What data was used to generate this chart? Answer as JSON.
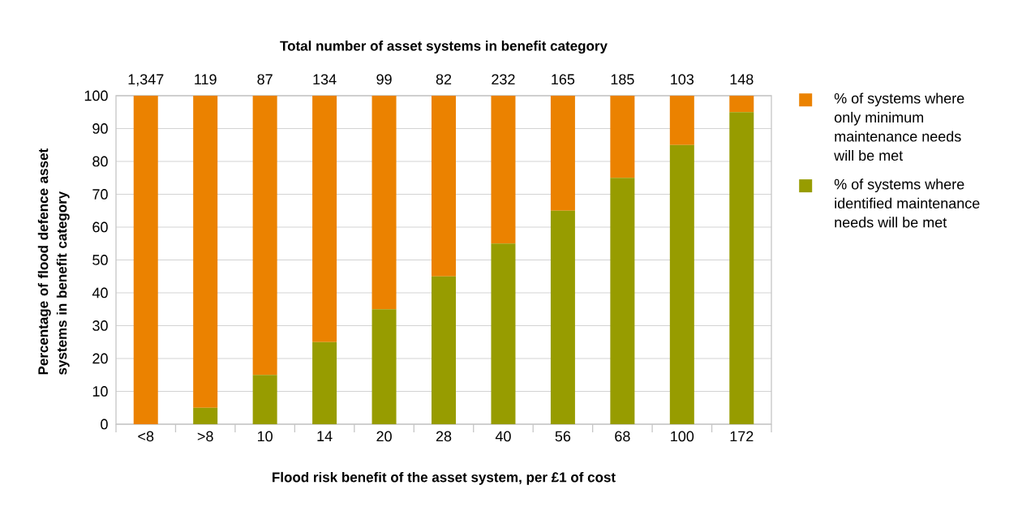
{
  "chart_data": {
    "type": "bar",
    "stacked": true,
    "x2label": "Total number of asset systems in benefit category",
    "xlabel": "Flood risk benefit of the asset system, per £1 of cost",
    "ylabel": "Percentage of flood defence asset systems in benefit category",
    "categories": [
      "<8",
      ">8",
      "10",
      "14",
      "20",
      "28",
      "40",
      "56",
      "68",
      "100",
      "172"
    ],
    "series": [
      {
        "name": "% of systems where identified maintenance needs will be met",
        "color": "#979c00",
        "values": [
          0,
          5,
          15,
          25,
          35,
          45,
          55,
          65,
          75,
          85,
          95
        ]
      },
      {
        "name": "% of systems where only minimum maintenance needs will be met",
        "color": "#eb8200",
        "values": [
          100,
          95,
          85,
          75,
          65,
          55,
          45,
          35,
          25,
          15,
          5
        ]
      }
    ],
    "ylim": [
      0,
      100
    ],
    "yticks": [
      0,
      10,
      20,
      30,
      40,
      50,
      60,
      70,
      80,
      90,
      100
    ],
    "grid": "y",
    "legend": "right",
    "annotations": [
      "1,347",
      "119",
      "87",
      "134",
      "99",
      "82",
      "232",
      "165",
      "185",
      "103",
      "148"
    ]
  }
}
